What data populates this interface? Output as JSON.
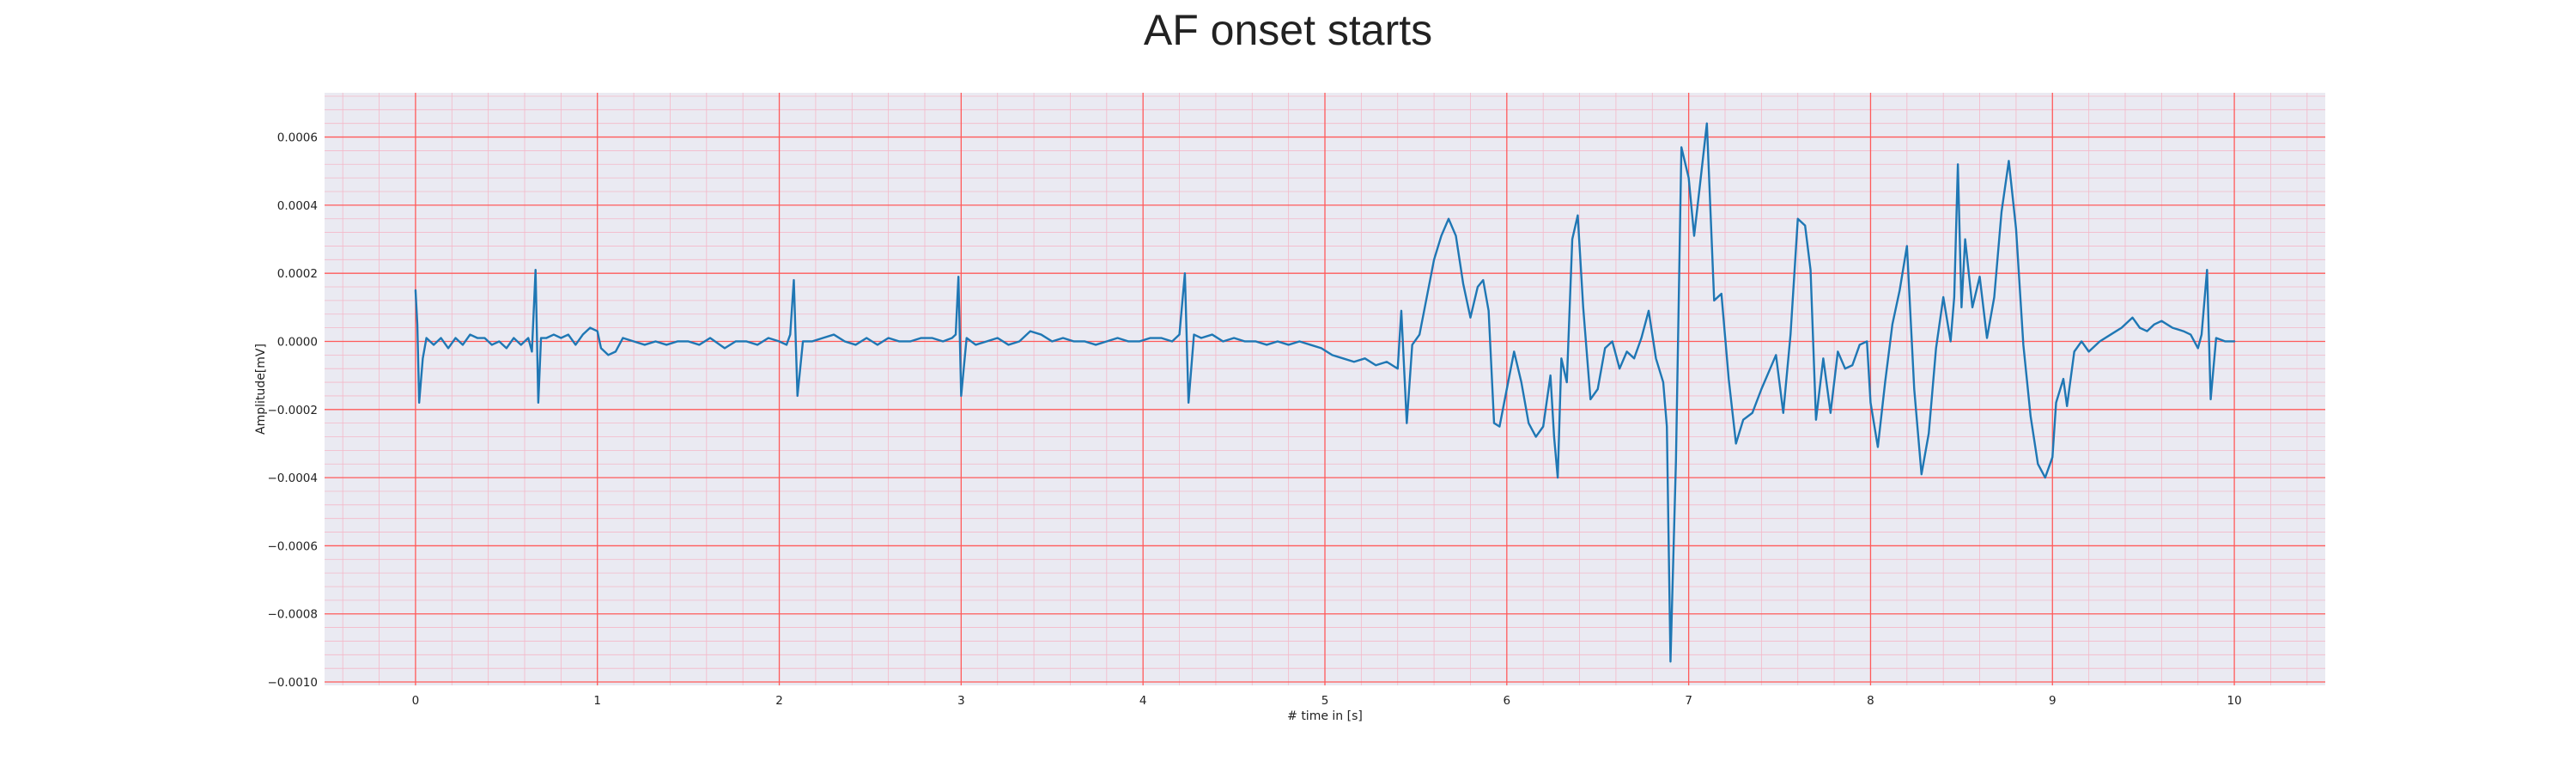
{
  "chart_data": {
    "type": "line",
    "title": "AF onset starts",
    "xlabel": "# time in [s]",
    "ylabel": "Amplitude[mV]",
    "xlim": [
      -0.5,
      10.5
    ],
    "ylim": [
      -0.00101,
      0.00073
    ],
    "x_ticks": [
      0,
      1,
      2,
      3,
      4,
      5,
      6,
      7,
      8,
      9,
      10
    ],
    "x_tick_labels": [
      "0",
      "1",
      "2",
      "3",
      "4",
      "5",
      "6",
      "7",
      "8",
      "9",
      "10"
    ],
    "y_ticks": [
      0.0006,
      0.0004,
      0.0002,
      0.0,
      -0.0002,
      -0.0004,
      -0.0006,
      -0.0008,
      -0.001
    ],
    "y_tick_labels": [
      "0.0006",
      "0.0004",
      "0.0002",
      "0.0000",
      "−0.0002",
      "−0.0004",
      "−0.0006",
      "−0.0008",
      "−0.0010"
    ],
    "grid": true,
    "minor_grid": true,
    "colors": {
      "background": "#eaeaf2",
      "major_grid": "#ff5a5a",
      "minor_grid": "#f4b8c8",
      "line": "#1f77b4"
    },
    "series": [
      {
        "values": [
          [
            0.0,
            0.00015
          ],
          [
            0.01,
            5e-05
          ],
          [
            0.02,
            -0.00018
          ],
          [
            0.04,
            -5e-05
          ],
          [
            0.06,
            1e-05
          ],
          [
            0.1,
            -1e-05
          ],
          [
            0.14,
            1e-05
          ],
          [
            0.18,
            -2e-05
          ],
          [
            0.22,
            1e-05
          ],
          [
            0.26,
            -1e-05
          ],
          [
            0.3,
            2e-05
          ],
          [
            0.34,
            1e-05
          ],
          [
            0.38,
            1e-05
          ],
          [
            0.42,
            -1e-05
          ],
          [
            0.46,
            0.0
          ],
          [
            0.5,
            -2e-05
          ],
          [
            0.54,
            1e-05
          ],
          [
            0.58,
            -1e-05
          ],
          [
            0.62,
            1e-05
          ],
          [
            0.64,
            -3e-05
          ],
          [
            0.66,
            0.00021
          ],
          [
            0.675,
            -0.00018
          ],
          [
            0.69,
            1e-05
          ],
          [
            0.72,
            1e-05
          ],
          [
            0.76,
            2e-05
          ],
          [
            0.8,
            1e-05
          ],
          [
            0.84,
            2e-05
          ],
          [
            0.88,
            -1e-05
          ],
          [
            0.92,
            2e-05
          ],
          [
            0.96,
            4e-05
          ],
          [
            1.0,
            3e-05
          ],
          [
            1.02,
            -2e-05
          ],
          [
            1.06,
            -4e-05
          ],
          [
            1.1,
            -3e-05
          ],
          [
            1.14,
            1e-05
          ],
          [
            1.2,
            0.0
          ],
          [
            1.26,
            -1e-05
          ],
          [
            1.32,
            0.0
          ],
          [
            1.38,
            -1e-05
          ],
          [
            1.44,
            0.0
          ],
          [
            1.5,
            0.0
          ],
          [
            1.56,
            -1e-05
          ],
          [
            1.62,
            1e-05
          ],
          [
            1.7,
            -2e-05
          ],
          [
            1.76,
            0.0
          ],
          [
            1.82,
            0.0
          ],
          [
            1.88,
            -1e-05
          ],
          [
            1.94,
            1e-05
          ],
          [
            2.0,
            0.0
          ],
          [
            2.04,
            -1e-05
          ],
          [
            2.06,
            2e-05
          ],
          [
            2.08,
            0.00018
          ],
          [
            2.1,
            -0.00016
          ],
          [
            2.13,
            0.0
          ],
          [
            2.18,
            0.0
          ],
          [
            2.24,
            1e-05
          ],
          [
            2.3,
            2e-05
          ],
          [
            2.36,
            0.0
          ],
          [
            2.42,
            -1e-05
          ],
          [
            2.48,
            1e-05
          ],
          [
            2.54,
            -1e-05
          ],
          [
            2.6,
            1e-05
          ],
          [
            2.66,
            0.0
          ],
          [
            2.72,
            0.0
          ],
          [
            2.78,
            1e-05
          ],
          [
            2.84,
            1e-05
          ],
          [
            2.9,
            0.0
          ],
          [
            2.95,
            1e-05
          ],
          [
            2.97,
            2e-05
          ],
          [
            2.985,
            0.00019
          ],
          [
            3.0,
            -0.00016
          ],
          [
            3.03,
            1e-05
          ],
          [
            3.08,
            -1e-05
          ],
          [
            3.14,
            0.0
          ],
          [
            3.2,
            1e-05
          ],
          [
            3.26,
            -1e-05
          ],
          [
            3.32,
            0.0
          ],
          [
            3.38,
            3e-05
          ],
          [
            3.44,
            2e-05
          ],
          [
            3.5,
            0.0
          ],
          [
            3.56,
            1e-05
          ],
          [
            3.62,
            0.0
          ],
          [
            3.68,
            0.0
          ],
          [
            3.74,
            -1e-05
          ],
          [
            3.8,
            0.0
          ],
          [
            3.86,
            1e-05
          ],
          [
            3.92,
            0.0
          ],
          [
            3.98,
            0.0
          ],
          [
            4.04,
            1e-05
          ],
          [
            4.1,
            1e-05
          ],
          [
            4.16,
            0.0
          ],
          [
            4.2,
            2e-05
          ],
          [
            4.23,
            0.0002
          ],
          [
            4.25,
            -0.00018
          ],
          [
            4.28,
            2e-05
          ],
          [
            4.32,
            1e-05
          ],
          [
            4.38,
            2e-05
          ],
          [
            4.44,
            0.0
          ],
          [
            4.5,
            1e-05
          ],
          [
            4.56,
            0.0
          ],
          [
            4.62,
            0.0
          ],
          [
            4.68,
            -1e-05
          ],
          [
            4.74,
            0.0
          ],
          [
            4.8,
            -1e-05
          ],
          [
            4.86,
            0.0
          ],
          [
            4.92,
            -1e-05
          ],
          [
            4.98,
            -2e-05
          ],
          [
            5.04,
            -4e-05
          ],
          [
            5.1,
            -5e-05
          ],
          [
            5.16,
            -6e-05
          ],
          [
            5.22,
            -5e-05
          ],
          [
            5.28,
            -7e-05
          ],
          [
            5.34,
            -6e-05
          ],
          [
            5.4,
            -8e-05
          ],
          [
            5.42,
            9e-05
          ],
          [
            5.45,
            -0.00024
          ],
          [
            5.48,
            -1e-05
          ],
          [
            5.52,
            2e-05
          ],
          [
            5.56,
            0.00013
          ],
          [
            5.6,
            0.00024
          ],
          [
            5.64,
            0.00031
          ],
          [
            5.68,
            0.00036
          ],
          [
            5.72,
            0.00031
          ],
          [
            5.76,
            0.00017
          ],
          [
            5.8,
            7e-05
          ],
          [
            5.84,
            0.00016
          ],
          [
            5.87,
            0.00018
          ],
          [
            5.9,
            9e-05
          ],
          [
            5.93,
            -0.00024
          ],
          [
            5.96,
            -0.00025
          ],
          [
            6.0,
            -0.00014
          ],
          [
            6.04,
            -3e-05
          ],
          [
            6.08,
            -0.00012
          ],
          [
            6.12,
            -0.00024
          ],
          [
            6.16,
            -0.00028
          ],
          [
            6.2,
            -0.00025
          ],
          [
            6.24,
            -0.0001
          ],
          [
            6.26,
            -0.00028
          ],
          [
            6.28,
            -0.0004
          ],
          [
            6.3,
            -5e-05
          ],
          [
            6.33,
            -0.00012
          ],
          [
            6.36,
            0.0003
          ],
          [
            6.39,
            0.00037
          ],
          [
            6.42,
            0.0001
          ],
          [
            6.46,
            -0.00017
          ],
          [
            6.5,
            -0.00014
          ],
          [
            6.54,
            -2e-05
          ],
          [
            6.58,
            0.0
          ],
          [
            6.62,
            -8e-05
          ],
          [
            6.66,
            -3e-05
          ],
          [
            6.7,
            -5e-05
          ],
          [
            6.74,
            1e-05
          ],
          [
            6.78,
            9e-05
          ],
          [
            6.82,
            -5e-05
          ],
          [
            6.86,
            -0.00012
          ],
          [
            6.88,
            -0.00025
          ],
          [
            6.9,
            -0.00094
          ],
          [
            6.93,
            -0.00035
          ],
          [
            6.96,
            0.00057
          ],
          [
            7.0,
            0.00048
          ],
          [
            7.03,
            0.00031
          ],
          [
            7.06,
            0.00045
          ],
          [
            7.1,
            0.00064
          ],
          [
            7.14,
            0.00012
          ],
          [
            7.18,
            0.00014
          ],
          [
            7.22,
            -0.00011
          ],
          [
            7.26,
            -0.0003
          ],
          [
            7.3,
            -0.00023
          ],
          [
            7.35,
            -0.00021
          ],
          [
            7.4,
            -0.00014
          ],
          [
            7.44,
            -9e-05
          ],
          [
            7.48,
            -4e-05
          ],
          [
            7.52,
            -0.00021
          ],
          [
            7.56,
            2e-05
          ],
          [
            7.6,
            0.00036
          ],
          [
            7.64,
            0.00034
          ],
          [
            7.67,
            0.00021
          ],
          [
            7.7,
            -0.00023
          ],
          [
            7.74,
            -5e-05
          ],
          [
            7.78,
            -0.00021
          ],
          [
            7.82,
            -3e-05
          ],
          [
            7.86,
            -8e-05
          ],
          [
            7.9,
            -7e-05
          ],
          [
            7.94,
            -1e-05
          ],
          [
            7.98,
            0.0
          ],
          [
            8.0,
            -0.00018
          ],
          [
            8.04,
            -0.00031
          ],
          [
            8.08,
            -0.00012
          ],
          [
            8.12,
            5e-05
          ],
          [
            8.16,
            0.00015
          ],
          [
            8.2,
            0.00028
          ],
          [
            8.24,
            -0.00014
          ],
          [
            8.28,
            -0.00039
          ],
          [
            8.32,
            -0.00027
          ],
          [
            8.36,
            -2e-05
          ],
          [
            8.4,
            0.00013
          ],
          [
            8.44,
            0.0
          ],
          [
            8.46,
            0.00013
          ],
          [
            8.48,
            0.00052
          ],
          [
            8.5,
            0.0001
          ],
          [
            8.52,
            0.0003
          ],
          [
            8.56,
            0.0001
          ],
          [
            8.6,
            0.00019
          ],
          [
            8.64,
            1e-05
          ],
          [
            8.68,
            0.00013
          ],
          [
            8.72,
            0.00038
          ],
          [
            8.76,
            0.00053
          ],
          [
            8.8,
            0.00033
          ],
          [
            8.84,
            -1e-05
          ],
          [
            8.88,
            -0.00022
          ],
          [
            8.92,
            -0.00036
          ],
          [
            8.96,
            -0.0004
          ],
          [
            9.0,
            -0.00034
          ],
          [
            9.02,
            -0.00018
          ],
          [
            9.06,
            -0.00011
          ],
          [
            9.08,
            -0.00019
          ],
          [
            9.12,
            -3e-05
          ],
          [
            9.16,
            0.0
          ],
          [
            9.2,
            -3e-05
          ],
          [
            9.26,
            0.0
          ],
          [
            9.32,
            2e-05
          ],
          [
            9.38,
            4e-05
          ],
          [
            9.44,
            7e-05
          ],
          [
            9.48,
            4e-05
          ],
          [
            9.52,
            3e-05
          ],
          [
            9.56,
            5e-05
          ],
          [
            9.6,
            6e-05
          ],
          [
            9.66,
            4e-05
          ],
          [
            9.72,
            3e-05
          ],
          [
            9.76,
            2e-05
          ],
          [
            9.8,
            -2e-05
          ],
          [
            9.82,
            2e-05
          ],
          [
            9.85,
            0.00021
          ],
          [
            9.87,
            -0.00017
          ],
          [
            9.9,
            1e-05
          ],
          [
            9.95,
            0.0
          ],
          [
            10.0,
            0.0
          ]
        ]
      }
    ]
  }
}
